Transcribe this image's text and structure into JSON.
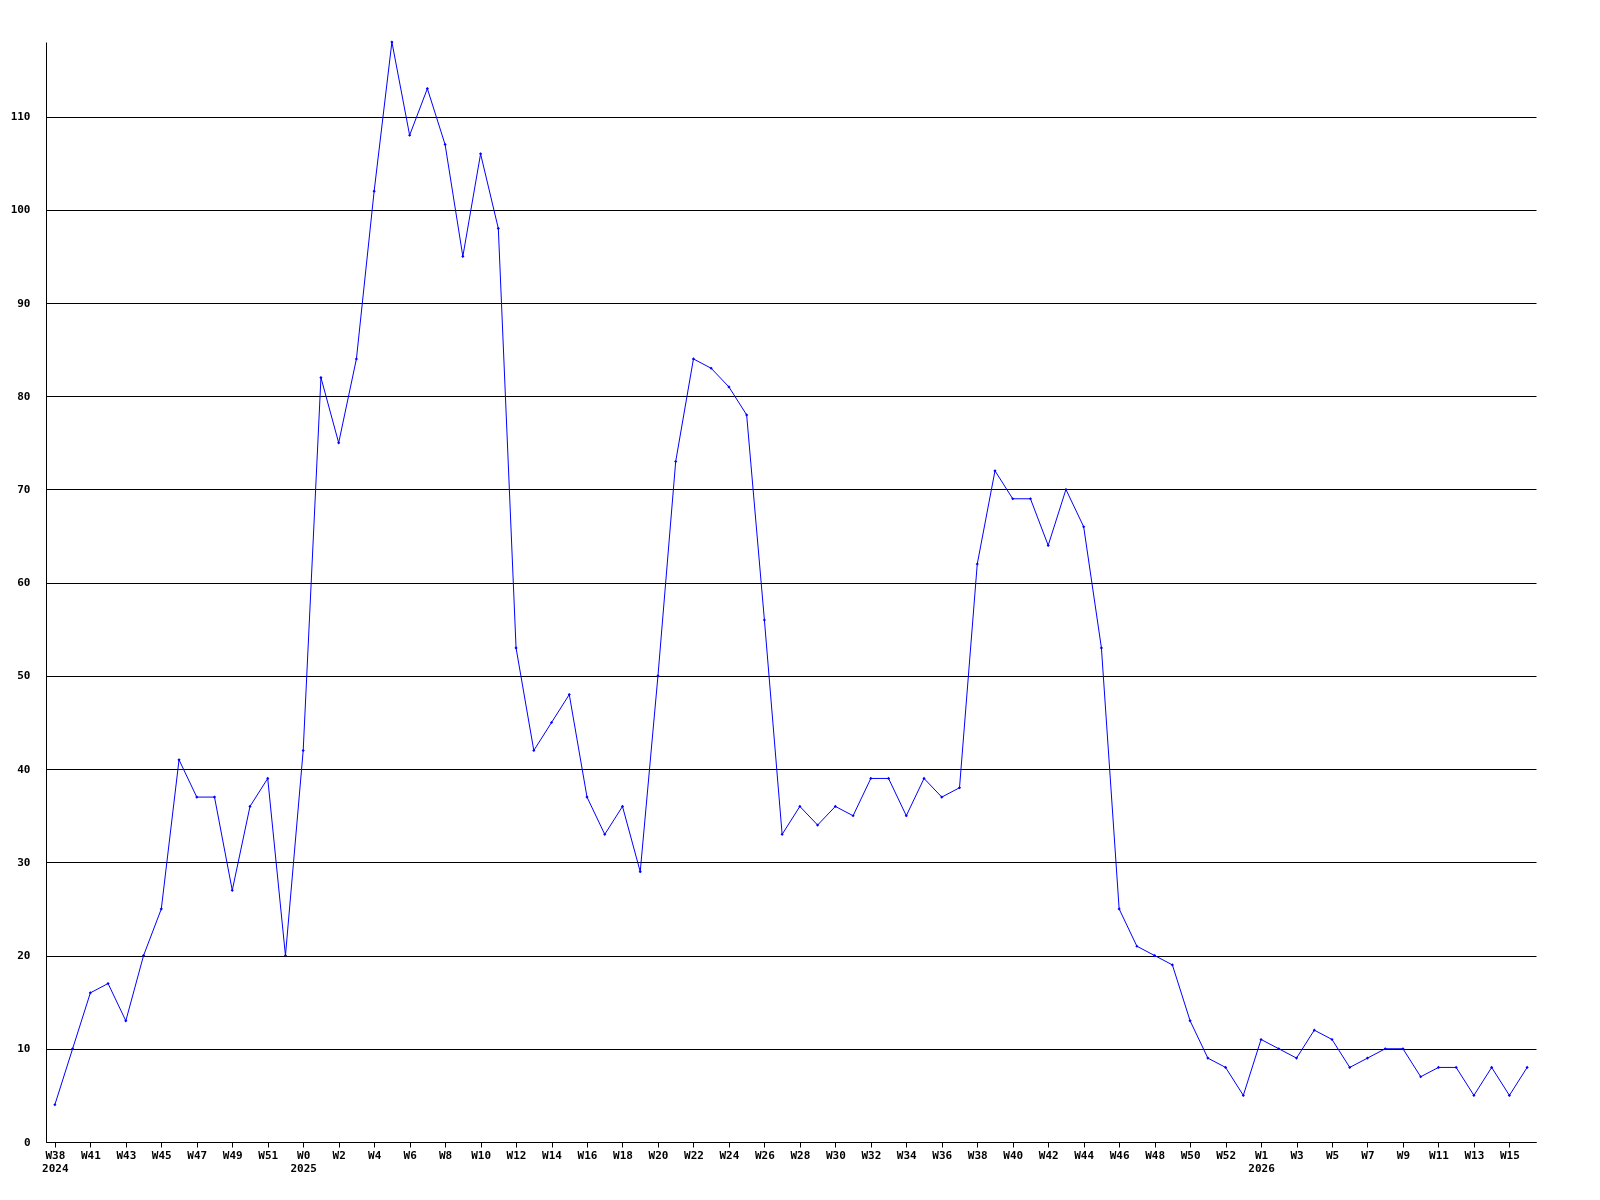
{
  "chart_data": {
    "type": "line",
    "categories": [
      "W38\n2024",
      null,
      "W41",
      null,
      "W43",
      null,
      "W45",
      null,
      "W47",
      null,
      "W49",
      null,
      "W51",
      null,
      "W0\n2025",
      null,
      "W2",
      null,
      "W4",
      null,
      "W6",
      null,
      "W8",
      null,
      "W10",
      null,
      "W12",
      null,
      "W14",
      null,
      "W16",
      null,
      "W18",
      null,
      "W20",
      null,
      "W22",
      null,
      "W24",
      null,
      "W26",
      null,
      "W28",
      null,
      "W30",
      null,
      "W32",
      null,
      "W34",
      null,
      "W36",
      null,
      "W38",
      null,
      "W40",
      null,
      "W42",
      null,
      "W44",
      null,
      "W46",
      null,
      "W48",
      null,
      "W50",
      null,
      "W52",
      null,
      "W1\n2026",
      null,
      "W3",
      null,
      "W5",
      null,
      "W7",
      null,
      "W9",
      null,
      "W11",
      null,
      "W13",
      null,
      "W15",
      null
    ],
    "series": [
      {
        "color": "#0000ff",
        "values": [
          4,
          10,
          16,
          17,
          13,
          20,
          25,
          41,
          37,
          37,
          27,
          36,
          39,
          20,
          42,
          82,
          75,
          84,
          102,
          118,
          108,
          113,
          107,
          95,
          106,
          98,
          53,
          42,
          45,
          48,
          37,
          33,
          36,
          29,
          50,
          73,
          84,
          83,
          81,
          78,
          56,
          33,
          36,
          34,
          36,
          35,
          39,
          39,
          35,
          39,
          37,
          38,
          62,
          72,
          69,
          69,
          64,
          70,
          66,
          53,
          25,
          21,
          20,
          19,
          13,
          9,
          8,
          5,
          11,
          10,
          9,
          12,
          11,
          8,
          9,
          10,
          10,
          7,
          8,
          8,
          5,
          8,
          5,
          8
        ]
      }
    ],
    "ylim": [
      0,
      118
    ],
    "yticks": [
      0,
      10,
      20,
      30,
      40,
      50,
      60,
      70,
      80,
      90,
      100,
      110
    ],
    "grid": "y",
    "marker": "diamond",
    "line_style": "solid"
  }
}
